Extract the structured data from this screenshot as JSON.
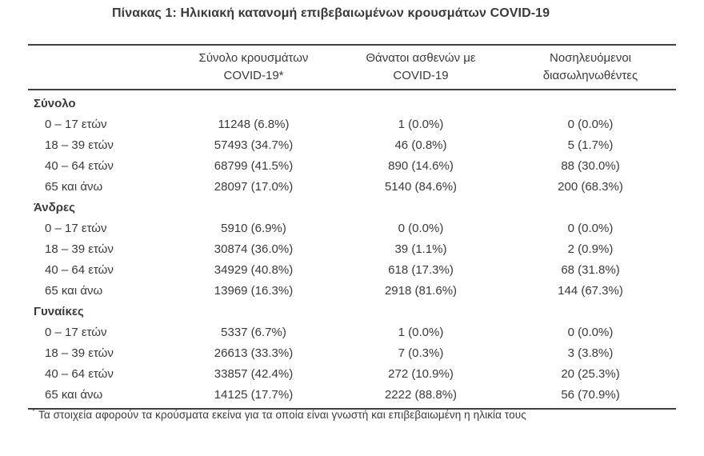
{
  "title": "Πίνακας 1: Ηλικιακή κατανομή επιβεβαιωμένων κρουσμάτων COVID-19",
  "header": {
    "col_cases": {
      "line1": "Σύνολο κρουσμάτων",
      "line2": "COVID-19*"
    },
    "col_deaths": {
      "line1": "Θάνατοι ασθενών με",
      "line2": "COVID-19"
    },
    "col_intubated": {
      "line1": "Νοσηλευόμενοι",
      "line2": "διασωληνωθέντες"
    }
  },
  "table": {
    "sections": [
      {
        "label": "Σύνολο",
        "rows": [
          {
            "age": "0 – 17 ετών",
            "cases": "11248 (6.8%)",
            "deaths": "1 (0.0%)",
            "intubated": "0 (0.0%)"
          },
          {
            "age": "18 – 39 ετών",
            "cases": "57493 (34.7%)",
            "deaths": "46 (0.8%)",
            "intubated": "5 (1.7%)"
          },
          {
            "age": "40 – 64 ετών",
            "cases": "68799 (41.5%)",
            "deaths": "890 (14.6%)",
            "intubated": "88 (30.0%)"
          },
          {
            "age": "65 και άνω",
            "cases": "28097 (17.0%)",
            "deaths": "5140 (84.6%)",
            "intubated": "200 (68.3%)"
          }
        ]
      },
      {
        "label": "Άνδρες",
        "rows": [
          {
            "age": "0 – 17 ετών",
            "cases": "5910 (6.9%)",
            "deaths": "0 (0.0%)",
            "intubated": "0 (0.0%)"
          },
          {
            "age": "18 – 39 ετών",
            "cases": "30874 (36.0%)",
            "deaths": "39 (1.1%)",
            "intubated": "2 (0.9%)"
          },
          {
            "age": "40 – 64 ετών",
            "cases": "34929 (40.8%)",
            "deaths": "618 (17.3%)",
            "intubated": "68 (31.8%)"
          },
          {
            "age": "65 και άνω",
            "cases": "13969 (16.3%)",
            "deaths": "2918 (81.6%)",
            "intubated": "144 (67.3%)"
          }
        ]
      },
      {
        "label": "Γυναίκες",
        "rows": [
          {
            "age": "0 – 17 ετών",
            "cases": "5337 (6.7%)",
            "deaths": "1 (0.0%)",
            "intubated": "0 (0.0%)"
          },
          {
            "age": "18 – 39 ετών",
            "cases": "26613 (33.3%)",
            "deaths": "7 (0.3%)",
            "intubated": "3 (3.8%)"
          },
          {
            "age": "40 – 64 ετών",
            "cases": "33857 (42.4%)",
            "deaths": "272 (10.9%)",
            "intubated": "20 (25.3%)"
          },
          {
            "age": "65 και άνω",
            "cases": "14125 (17.7%)",
            "deaths": "2222 (88.8%)",
            "intubated": "56 (70.9%)"
          }
        ]
      }
    ]
  },
  "footnote": {
    "marker": "*",
    "text": "Τα στοιχεία αφορούν τα κρούσματα εκείνα για τα οποία είναι γνωστή και επιβεβαιωμένη η ηλικία τους"
  },
  "colors": {
    "text": "#3a3a3c",
    "rule": "#3f3f41"
  }
}
